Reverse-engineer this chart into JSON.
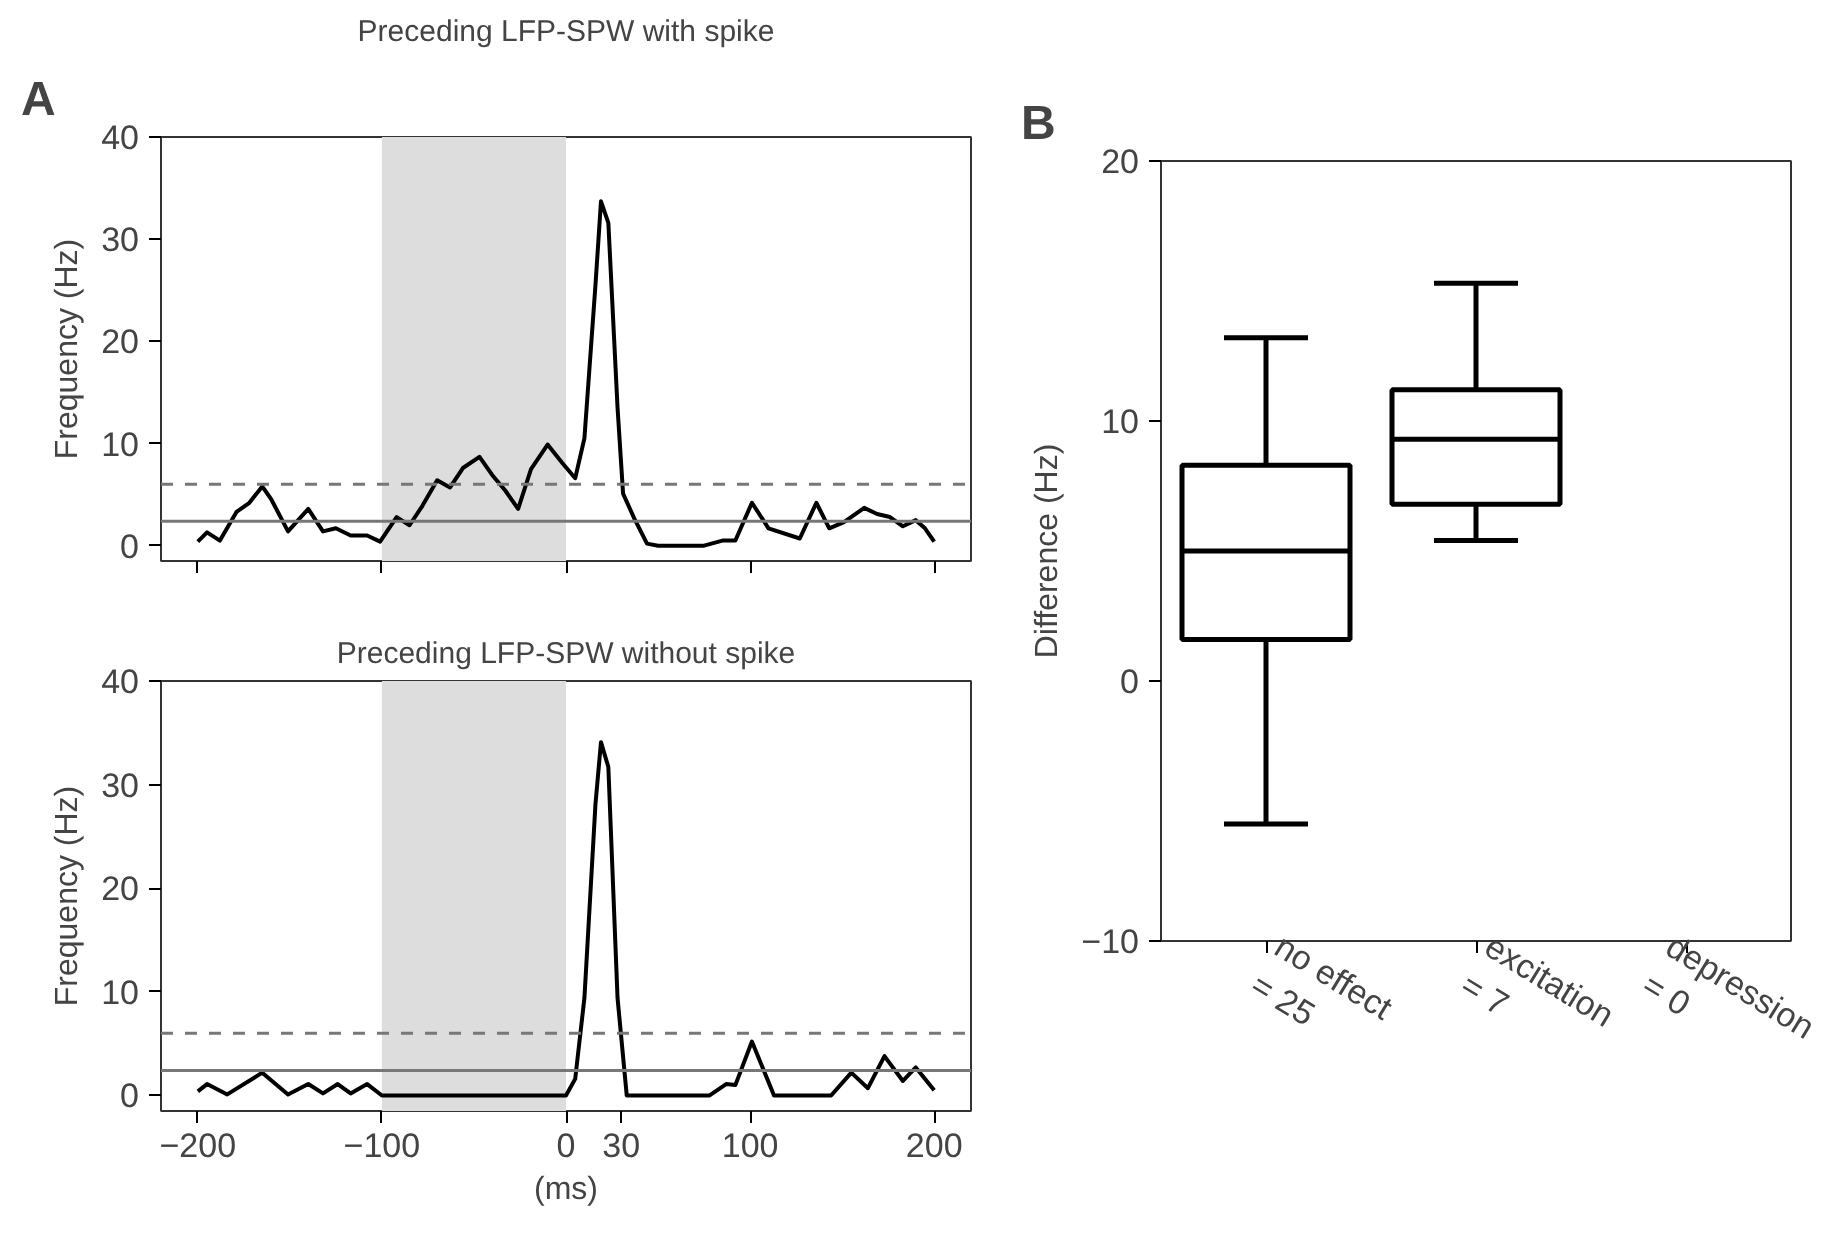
{
  "chart_data": [
    {
      "type": "line",
      "title": "Preceding LFP-SPW with spike",
      "ylabel": "Frequency (Hz)",
      "annotations": [
        "A"
      ],
      "xlim": [
        -220,
        220
      ],
      "ylim": [
        -1.5,
        40
      ],
      "xticks": [
        -200,
        -100,
        0,
        100,
        200
      ],
      "yticks": [
        0,
        10,
        20,
        30,
        40
      ],
      "tick_labels": "y",
      "grid": false,
      "x": [
        -200,
        -195,
        -188,
        -179,
        -172,
        -165,
        -160,
        -151,
        -140,
        -132,
        -125,
        -117,
        -108,
        -101,
        -92,
        -85,
        -78,
        -70,
        -63,
        -56,
        -47,
        -40,
        -33,
        -26,
        -19,
        -10,
        -2,
        5,
        10,
        16,
        19,
        23,
        28,
        31,
        37,
        44,
        50,
        75,
        85,
        92,
        101,
        110,
        127,
        136,
        143,
        151,
        162,
        169,
        176,
        183,
        190,
        195,
        200
      ],
      "series": [
        {
          "color": "#000000",
          "values": [
            0.4,
            1.3,
            0.5,
            3.3,
            4.2,
            5.8,
            4.5,
            1.4,
            3.6,
            1.4,
            1.7,
            1.0,
            1.0,
            0.4,
            2.8,
            2.0,
            3.9,
            6.4,
            5.7,
            7.6,
            8.7,
            6.9,
            5.4,
            3.6,
            7.5,
            9.9,
            8.1,
            6.6,
            10.5,
            25.5,
            33.7,
            31.6,
            13.5,
            5.1,
            2.7,
            0.2,
            0,
            0,
            0.5,
            0.5,
            4.2,
            1.7,
            0.7,
            4.2,
            1.7,
            2.3,
            3.7,
            3.1,
            2.8,
            1.9,
            2.5,
            1.7,
            0.4
          ]
        }
      ],
      "ref_lines": [
        {
          "axis": "y",
          "value": 6,
          "color": "#777777",
          "line_style": "dashed"
        },
        {
          "axis": "y",
          "value": 2.4,
          "color": "#777777",
          "line_style": "solid"
        }
      ],
      "bands": [
        {
          "axis": "x",
          "from": -100,
          "to": 0,
          "color": "#dddddd"
        }
      ]
    },
    {
      "type": "line",
      "title": "Preceding LFP-SPW without spike",
      "xlabel": "(ms)",
      "ylabel": "Frequency (Hz)",
      "xlim": [
        -220,
        220
      ],
      "ylim": [
        -1.5,
        40
      ],
      "xticks": [
        -200,
        -100,
        0,
        30,
        100,
        200
      ],
      "yticks": [
        0,
        10,
        20,
        30,
        40
      ],
      "grid": false,
      "x": [
        -200,
        -195,
        -184,
        -165,
        -151,
        -140,
        -132,
        -124,
        -117,
        -108,
        -100,
        0,
        5,
        10,
        16,
        19,
        23,
        28,
        33,
        78,
        87,
        92,
        101,
        113,
        144,
        155,
        164,
        173,
        183,
        190,
        200
      ],
      "series": [
        {
          "color": "#000000",
          "values": [
            0.4,
            1.1,
            0.1,
            2.2,
            0.1,
            1.1,
            0.2,
            1.1,
            0.2,
            1.1,
            0,
            0,
            1.6,
            9.4,
            28.1,
            34.1,
            31.7,
            9.4,
            0,
            0,
            1.1,
            1.0,
            5.2,
            0,
            0,
            2.2,
            0.7,
            3.8,
            1.4,
            2.7,
            0.5
          ]
        }
      ],
      "ref_lines": [
        {
          "axis": "y",
          "value": 6,
          "color": "#777777",
          "line_style": "dashed"
        },
        {
          "axis": "y",
          "value": 2.4,
          "color": "#777777",
          "line_style": "solid"
        }
      ],
      "bands": [
        {
          "axis": "x",
          "from": -100,
          "to": 0,
          "color": "#dddddd"
        }
      ]
    },
    {
      "type": "box",
      "ylabel": "Difference (Hz)",
      "annotations": [
        "B"
      ],
      "categories": [
        "no effect\n= 25",
        "excitation\n= 7",
        "depression\n= 0"
      ],
      "ylim": [
        -10,
        20
      ],
      "yticks": [
        -10,
        0,
        10,
        20
      ],
      "grid": false,
      "boxes": [
        {
          "low": -5.5,
          "q1": 1.6,
          "median": 5.0,
          "q3": 8.3,
          "high": 13.2
        },
        {
          "low": 5.4,
          "q1": 6.8,
          "median": 9.3,
          "q3": 11.2,
          "high": 15.3
        },
        null
      ]
    }
  ]
}
